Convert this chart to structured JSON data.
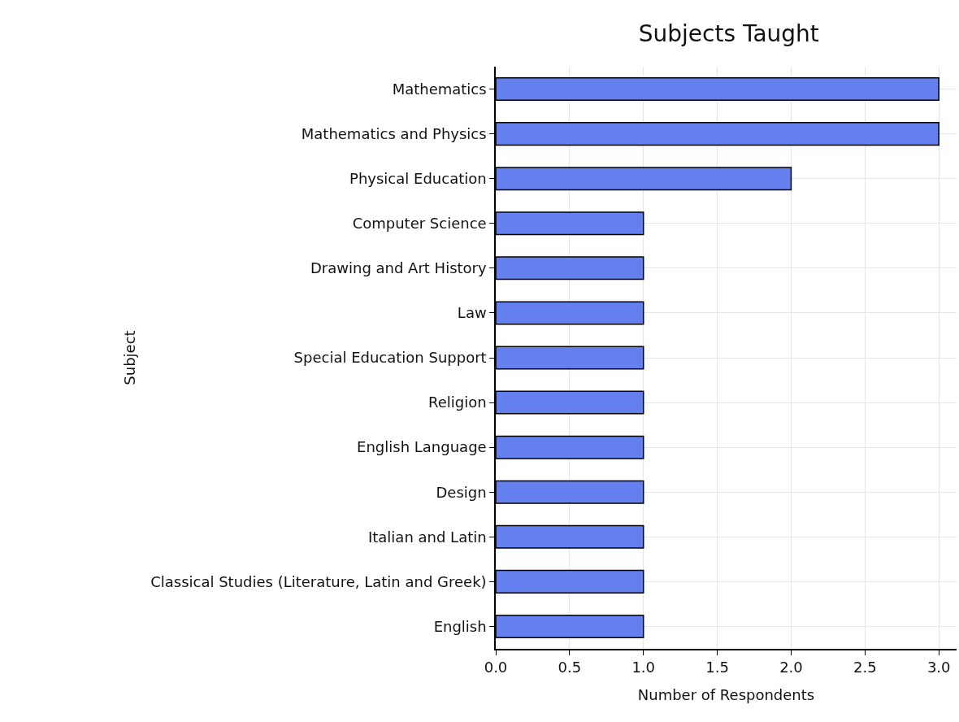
{
  "chart_data": {
    "type": "bar",
    "orientation": "horizontal",
    "title": "Subjects Taught",
    "xlabel": "Number of Respondents",
    "ylabel": "Subject",
    "categories": [
      "Mathematics",
      "Mathematics and Physics",
      "Physical Education",
      "Computer Science",
      "Drawing and Art History",
      "Law",
      "Special Education Support",
      "Religion",
      "English Language",
      "Design",
      "Italian and Latin",
      "Classical Studies (Literature, Latin and Greek)",
      "English"
    ],
    "values": [
      3,
      3,
      2,
      1,
      1,
      1,
      1,
      1,
      1,
      1,
      1,
      1,
      1
    ],
    "color": "#6380ee",
    "xlim": [
      0,
      3.12
    ],
    "xticks": [
      {
        "value": 0,
        "label": "0.0"
      },
      {
        "value": 0.5,
        "label": "0.5"
      },
      {
        "value": 1,
        "label": "1.0"
      },
      {
        "value": 1.5,
        "label": "1.5"
      },
      {
        "value": 2,
        "label": "2.0"
      },
      {
        "value": 2.5,
        "label": "2.5"
      },
      {
        "value": 3,
        "label": "3.0"
      }
    ],
    "grid": true
  }
}
